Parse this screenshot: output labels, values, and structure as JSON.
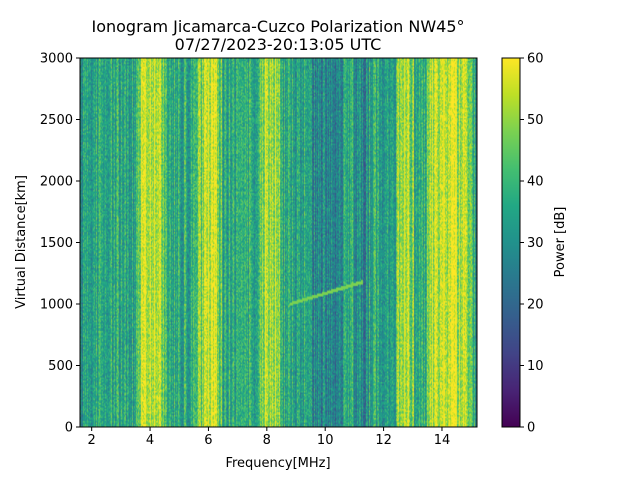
{
  "chart_data": {
    "type": "heatmap",
    "title_line1": "Ionogram Jicamarca-Cuzco Polarization NW45°",
    "title_line2": "07/27/2023-20:13:05 UTC",
    "xlabel": "Frequency[MHz]",
    "ylabel": "Virtual Distance[km]",
    "xlim": [
      1.6,
      15.2
    ],
    "ylim": [
      0,
      3000
    ],
    "xticks": [
      2,
      4,
      6,
      8,
      10,
      12,
      14
    ],
    "yticks": [
      0,
      500,
      1000,
      1500,
      2000,
      2500,
      3000
    ],
    "colorbar": {
      "label": "Power [dB]",
      "min": 0,
      "max": 60,
      "ticks": [
        0,
        10,
        20,
        30,
        40,
        50,
        60
      ],
      "colormap": "viridis"
    },
    "grid": false,
    "bright_bands_mhz": [
      [
        3.7,
        4.4
      ],
      [
        5.8,
        6.3
      ],
      [
        7.9,
        8.3
      ],
      [
        12.6,
        12.9
      ],
      [
        13.6,
        14.9
      ]
    ],
    "dark_bands_mhz": [
      [
        9.3,
        10.6
      ],
      [
        11.0,
        11.5
      ]
    ],
    "narrow_lines_mhz": [
      11.6,
      12.7,
      14.05
    ],
    "trace": {
      "description_freq_start_mhz": 8.8,
      "description_freq_end_mhz": 11.3,
      "virtual_distance_km_start": 1000,
      "virtual_distance_km_end": 1180
    }
  }
}
